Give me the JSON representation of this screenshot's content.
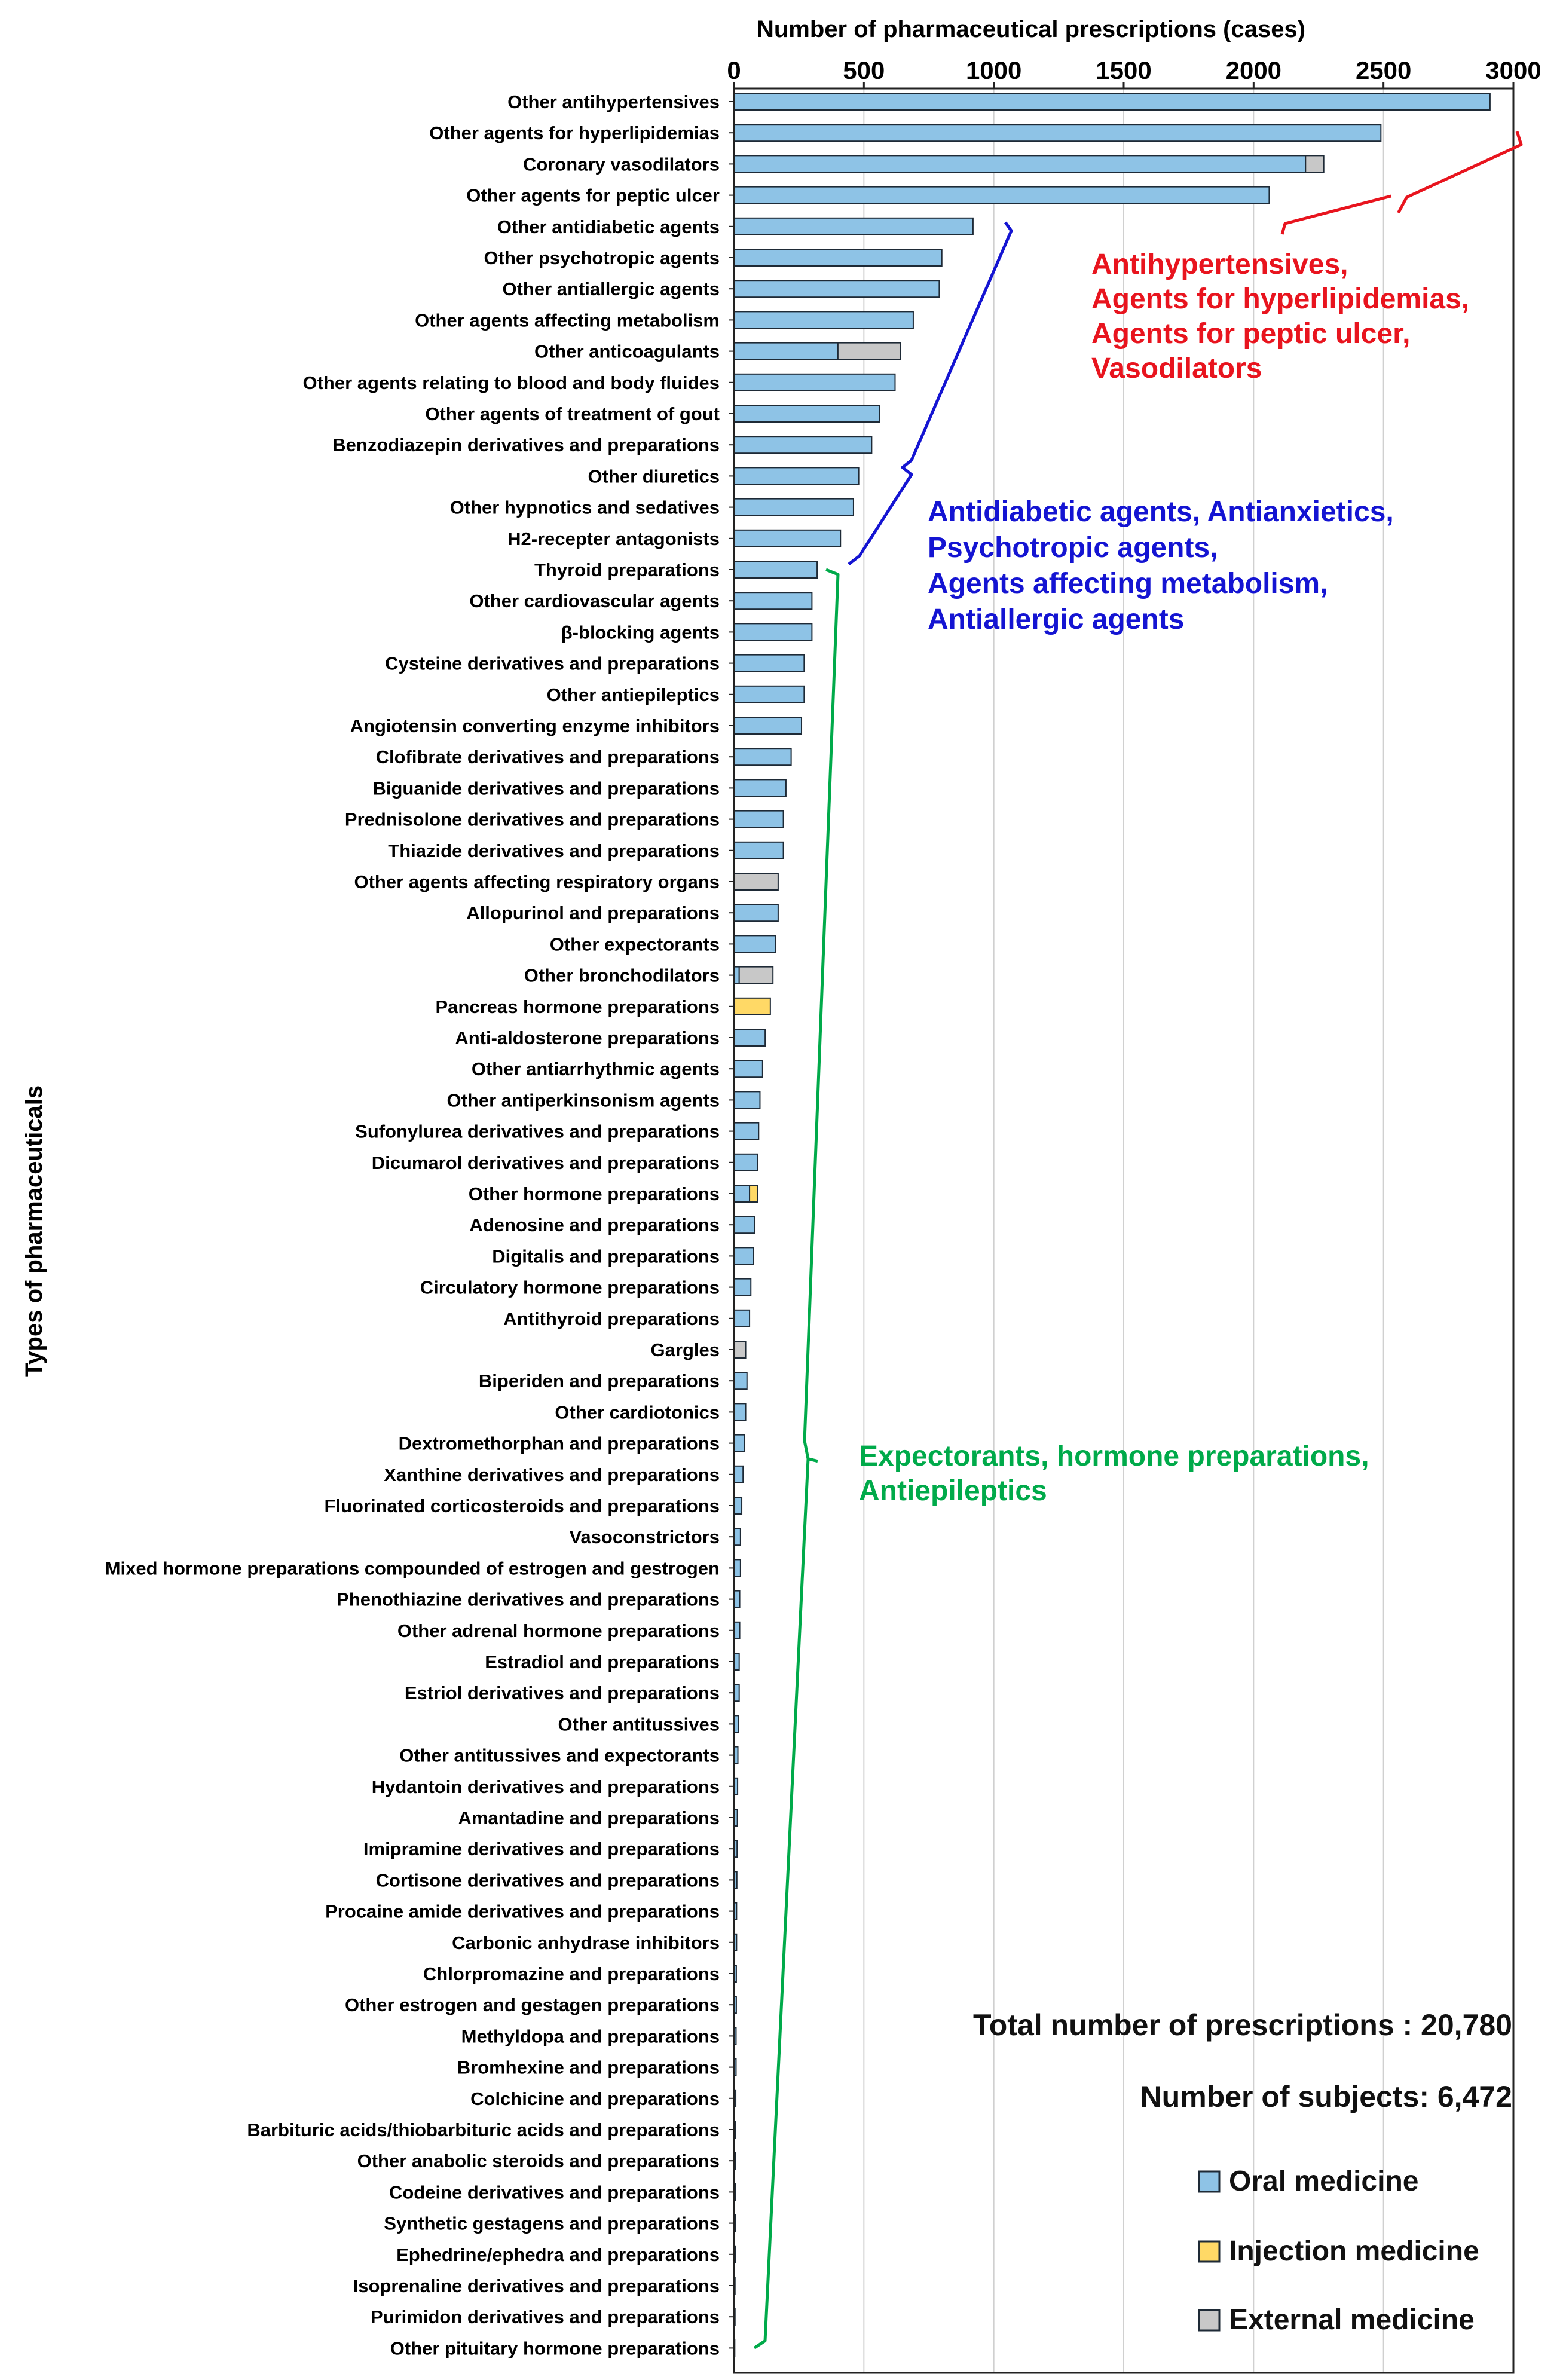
{
  "chart_data": {
    "type": "bar",
    "orientation": "horizontal",
    "stacked": true,
    "title": "",
    "xlabel": "Number of pharmaceutical prescriptions (cases)",
    "ylabel": "Types of pharmaceuticals",
    "xlim": [
      0,
      3000
    ],
    "xticks": [
      0,
      500,
      1000,
      1500,
      2000,
      2500,
      3000
    ],
    "grid": "vertical",
    "legend": [
      {
        "name": "Oral medicine",
        "color": "#8ec3e6"
      },
      {
        "name": "Injection medicine",
        "color": "#ffd966"
      },
      {
        "name": "External medicine",
        "color": "#c8c8c8"
      }
    ],
    "legend_position": "bottom-right",
    "categories": [
      "Other antihypertensives",
      "Other agents for hyperlipidemias",
      "Coronary vasodilators",
      "Other agents for peptic ulcer",
      "Other antidiabetic agents",
      "Other psychotropic agents",
      "Other antiallergic agents",
      "Other agents affecting metabolism",
      "Other anticoagulants",
      "Other agents relating to blood and body fluides",
      "Other agents of treatment of gout",
      "Benzodiazepin derivatives and preparations",
      "Other diuretics",
      "Other hypnotics and sedatives",
      "H2-recepter antagonists",
      "Thyroid preparations",
      "Other cardiovascular agents",
      "β-blocking agents",
      "Cysteine derivatives and preparations",
      "Other antiepileptics",
      "Angiotensin converting enzyme inhibitors",
      "Clofibrate derivatives and preparations",
      "Biguanide derivatives and preparations",
      "Prednisolone derivatives and preparations",
      "Thiazide derivatives and preparations",
      "Other agents affecting respiratory organs",
      "Allopurinol and preparations",
      "Other expectorants",
      "Other bronchodilators",
      "Pancreas hormone preparations",
      "Anti-aldosterone preparations",
      "Other antiarrhythmic agents",
      "Other antiperkinsonism agents",
      "Sufonylurea derivatives and preparations",
      "Dicumarol derivatives and preparations",
      "Other hormone preparations",
      "Adenosine and preparations",
      "Digitalis and preparations",
      "Circulatory hormone preparations",
      "Antithyroid preparations",
      "Gargles",
      "Biperiden and preparations",
      "Other cardiotonics",
      "Dextromethorphan and preparations",
      "Xanthine derivatives and preparations",
      "Fluorinated corticosteroids and preparations",
      "Vasoconstrictors",
      "Mixed hormone preparations compounded of estrogen and gestrogen",
      "Phenothiazine derivatives and preparations",
      "Other adrenal hormone preparations",
      "Estradiol and preparations",
      "Estriol derivatives and preparations",
      "Other antitussives",
      "Other antitussives and expectorants",
      "Hydantoin derivatives and preparations",
      "Amantadine and preparations",
      "Imipramine derivatives and preparations",
      "Cortisone derivatives and preparations",
      "Procaine amide derivatives and preparations",
      "Carbonic anhydrase inhibitors",
      "Chlorpromazine and preparations",
      "Other estrogen and gestagen preparations",
      "Methyldopa and preparations",
      "Bromhexine and preparations",
      "Colchicine and preparations",
      "Barbituric acids/thiobarbituric acids and preparations",
      "Other anabolic steroids and preparations",
      "Codeine derivatives and preparations",
      "Synthetic gestagens and preparations",
      "Ephedrine/ephedra and preparations",
      "Isoprenaline derivatives and preparations",
      "Purimidon derivatives and preparations",
      "Other pituitary hormone preparations"
    ],
    "series": [
      {
        "name": "Oral medicine",
        "color": "#8ec3e6",
        "values": [
          2910,
          2490,
          2200,
          2060,
          920,
          800,
          790,
          690,
          400,
          620,
          560,
          530,
          480,
          460,
          410,
          320,
          300,
          300,
          270,
          270,
          260,
          220,
          200,
          190,
          190,
          0,
          170,
          160,
          20,
          0,
          120,
          110,
          100,
          95,
          90,
          60,
          80,
          75,
          65,
          60,
          0,
          50,
          45,
          40,
          35,
          30,
          25,
          25,
          22,
          22,
          20,
          20,
          18,
          15,
          14,
          13,
          12,
          11,
          10,
          10,
          9,
          9,
          8,
          8,
          7,
          6,
          6,
          6,
          5,
          5,
          4,
          4,
          3
        ]
      },
      {
        "name": "Injection medicine",
        "color": "#ffd966",
        "values": [
          0,
          0,
          0,
          0,
          0,
          0,
          0,
          0,
          0,
          0,
          0,
          0,
          0,
          0,
          0,
          0,
          0,
          0,
          0,
          0,
          0,
          0,
          0,
          0,
          0,
          0,
          0,
          0,
          0,
          140,
          0,
          0,
          0,
          0,
          0,
          30,
          0,
          0,
          0,
          0,
          0,
          0,
          0,
          0,
          0,
          0,
          0,
          0,
          0,
          0,
          0,
          0,
          0,
          0,
          0,
          0,
          0,
          0,
          0,
          0,
          0,
          0,
          0,
          0,
          0,
          0,
          0,
          0,
          0,
          0,
          0,
          0,
          0
        ]
      },
      {
        "name": "External medicine",
        "color": "#c8c8c8",
        "values": [
          0,
          0,
          70,
          0,
          0,
          0,
          0,
          0,
          240,
          0,
          0,
          0,
          0,
          0,
          0,
          0,
          0,
          0,
          0,
          0,
          0,
          0,
          0,
          0,
          0,
          170,
          0,
          0,
          130,
          0,
          0,
          0,
          0,
          0,
          0,
          0,
          0,
          0,
          0,
          0,
          45,
          0,
          0,
          0,
          0,
          0,
          0,
          0,
          0,
          0,
          0,
          0,
          0,
          0,
          0,
          0,
          0,
          0,
          0,
          0,
          0,
          0,
          0,
          0,
          0,
          0,
          0,
          0,
          0,
          0,
          0,
          0,
          0
        ]
      }
    ],
    "annotations": [
      {
        "group": "red",
        "color": "#e8141e",
        "range": [
          "Other antihypertensives",
          "Other agents for peptic ulcer"
        ],
        "lines": [
          "Antihypertensives,",
          "Agents for hyperlipidemias,",
          "Agents for peptic ulcer,",
          "Vasodilators"
        ]
      },
      {
        "group": "blue",
        "color": "#1414d2",
        "range": [
          "Other antidiabetic agents",
          "H2-recepter antagonists"
        ],
        "lines": [
          "Antidiabetic agents, Antianxietics,",
          "Psychotropic agents,",
          "Agents affecting metabolism,",
          "Antiallergic agents"
        ]
      },
      {
        "group": "green",
        "color": "#00aa4a",
        "range": [
          "Thyroid preparations",
          "Other pituitary hormone preparations"
        ],
        "lines": [
          "Expectorants, hormone preparations,",
          "Antiepileptics"
        ]
      }
    ]
  },
  "stats": {
    "total_prescriptions": "Total number of prescriptions : 20,780",
    "subjects": "Number of subjects: 6,472"
  }
}
